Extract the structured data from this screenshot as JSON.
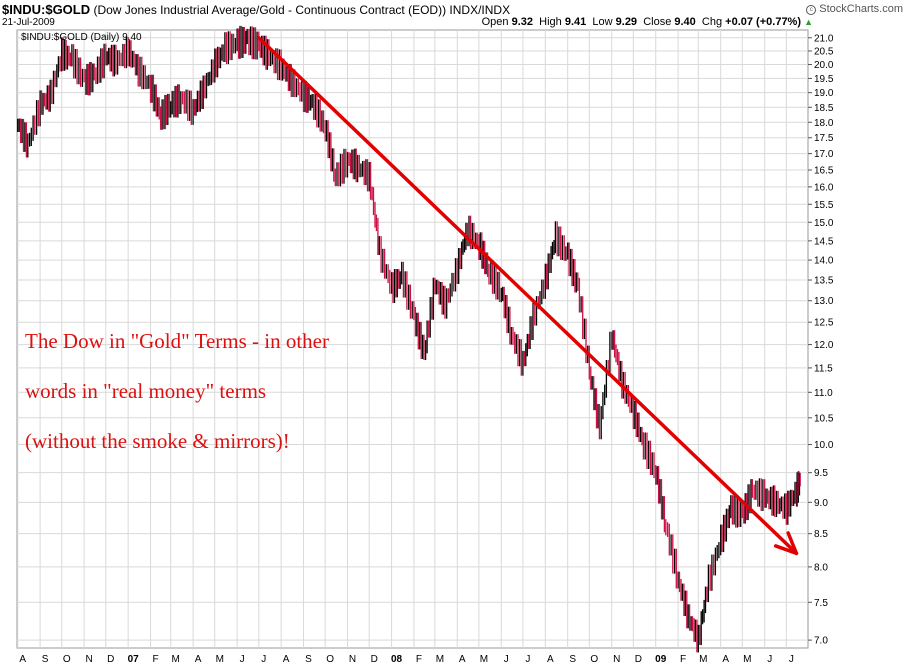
{
  "header": {
    "symbol": "$INDU:$GOLD",
    "description": "(Dow Jones Industrial Average/Gold - Continuous Contract (EOD))",
    "exchange": "INDX/INDX",
    "date": "21-Jul-2009",
    "quote": {
      "open_label": "Open",
      "open": "9.32",
      "high_label": "High",
      "high": "9.41",
      "low_label": "Low",
      "low": "9.29",
      "close_label": "Close",
      "close": "9.40",
      "chg_label": "Chg",
      "chg": "+0.07 (+0.77%)",
      "up_arrow": "▲"
    },
    "brand": "StockCharts.com",
    "brand_icon": "copyright-icon"
  },
  "legend_label": "$INDU:$GOLD (Daily) 9.40",
  "annotation": {
    "line1": "The Dow in \"Gold\" Terms - in other",
    "line2": "words in \"real money\" terms",
    "line3": "(without the smoke & mirrors)!",
    "color": "#dd0f0f"
  },
  "colors": {
    "up_bar": "#000000",
    "down_bar": "#cc1144",
    "trend_arrow": "#e30000",
    "grid": "#d9d9d9"
  },
  "chart_data": {
    "type": "line",
    "title": "$INDU:$GOLD",
    "subtitle": "Dow Jones Industrial Average/Gold - Continuous Contract (EOD)",
    "scale": "log",
    "ylim": [
      6.9,
      21.3
    ],
    "yticks": [
      "7.0",
      "7.5",
      "8.0",
      "8.5",
      "9.0",
      "9.5",
      "10.0",
      "10.5",
      "11.0",
      "11.5",
      "12.0",
      "12.5",
      "13.0",
      "13.5",
      "14.0",
      "14.5",
      "15.0",
      "15.5",
      "16.0",
      "16.5",
      "17.0",
      "17.5",
      "18.0",
      "18.5",
      "19.0",
      "19.5",
      "20.0",
      "20.5",
      "21.0"
    ],
    "x_labels": [
      "A",
      "S",
      "O",
      "N",
      "D",
      "07",
      "F",
      "M",
      "A",
      "M",
      "J",
      "J",
      "A",
      "S",
      "O",
      "N",
      "D",
      "08",
      "F",
      "M",
      "A",
      "M",
      "J",
      "J",
      "A",
      "S",
      "O",
      "N",
      "D",
      "09",
      "F",
      "M",
      "A",
      "M",
      "J",
      "J"
    ],
    "x_bold": [
      "07",
      "08",
      "09"
    ],
    "grid": true,
    "series": [
      {
        "x": [
          "2006-08-01",
          "2006-08-15",
          "2006-09-01",
          "2006-09-15",
          "2006-10-01",
          "2006-10-15",
          "2006-11-01",
          "2006-11-15",
          "2006-12-01",
          "2006-12-15",
          "2007-01-01",
          "2007-01-15",
          "2007-02-01",
          "2007-02-15",
          "2007-03-01",
          "2007-03-15",
          "2007-04-01",
          "2007-04-15",
          "2007-05-01",
          "2007-05-15",
          "2007-06-01",
          "2007-06-15",
          "2007-07-01",
          "2007-07-15",
          "2007-08-01",
          "2007-08-15",
          "2007-09-01",
          "2007-09-15",
          "2007-10-01",
          "2007-10-15",
          "2007-11-01",
          "2007-11-15",
          "2007-12-01",
          "2007-12-15",
          "2008-01-01",
          "2008-01-15",
          "2008-02-01",
          "2008-02-15",
          "2008-03-01",
          "2008-03-15",
          "2008-04-01",
          "2008-04-15",
          "2008-05-01",
          "2008-05-15",
          "2008-06-01",
          "2008-06-15",
          "2008-07-01",
          "2008-07-15",
          "2008-08-01",
          "2008-08-15",
          "2008-09-01",
          "2008-09-15",
          "2008-10-01",
          "2008-10-15",
          "2008-11-01",
          "2008-11-15",
          "2008-12-01",
          "2008-12-15",
          "2009-01-01",
          "2009-01-15",
          "2009-02-01",
          "2009-02-15",
          "2009-03-01",
          "2009-03-15",
          "2009-04-01",
          "2009-04-15",
          "2009-05-01",
          "2009-05-15",
          "2009-06-01",
          "2009-06-15",
          "2009-07-01",
          "2009-07-15",
          "2009-07-21"
        ],
        "values": [
          17.9,
          17.3,
          18.6,
          18.9,
          20.4,
          20.2,
          19.4,
          19.6,
          20.3,
          20.1,
          20.5,
          19.8,
          19.2,
          18.2,
          18.6,
          18.8,
          18.4,
          19.1,
          20.0,
          20.6,
          20.8,
          20.9,
          20.7,
          20.3,
          19.9,
          19.4,
          18.9,
          18.6,
          17.8,
          16.3,
          16.8,
          16.6,
          16.3,
          14.2,
          13.3,
          13.6,
          12.6,
          11.8,
          13.4,
          12.9,
          13.8,
          14.8,
          14.4,
          13.7,
          13.2,
          12.2,
          11.6,
          12.6,
          13.5,
          14.6,
          14.1,
          13.3,
          11.4,
          10.3,
          12.2,
          11.2,
          10.6,
          10.0,
          9.5,
          8.6,
          7.8,
          7.3,
          7.0,
          7.8,
          8.4,
          8.9,
          8.8,
          9.2,
          9.1,
          9.0,
          8.9,
          9.2,
          9.4
        ]
      }
    ],
    "trend_line": {
      "x": [
        "2007-07-01",
        "2009-07-15"
      ],
      "values": [
        21.0,
        8.2
      ]
    }
  }
}
